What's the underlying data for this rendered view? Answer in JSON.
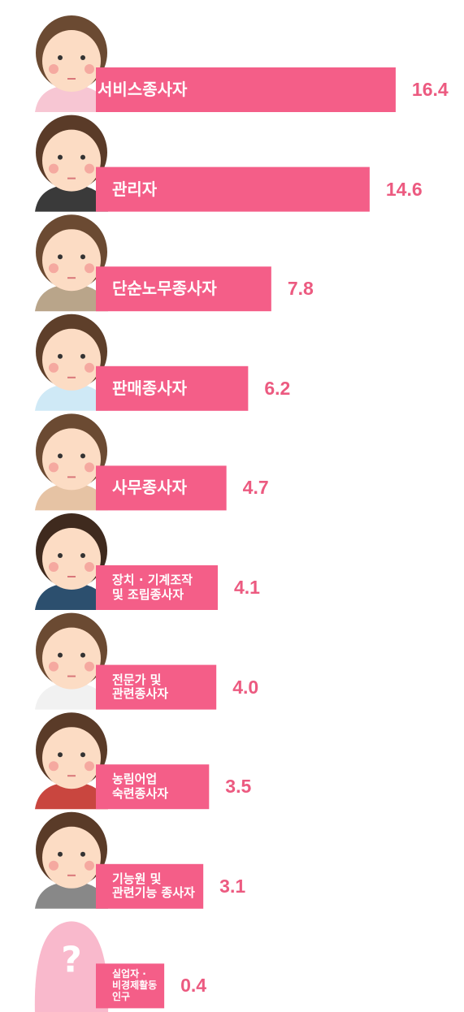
{
  "chart_data": {
    "type": "bar",
    "orientation": "horizontal",
    "color": "#f45e88",
    "categories": [
      "서비스종사자",
      "관리자",
      "단순노무종사자",
      "판매종사자",
      "사무종사자",
      "장치 · 기계조작\n및 조립종사자",
      "전문가 및\n관련종사자",
      "농림어업\n숙련종사자",
      "기능원 및\n관련기능 종사자",
      "실업자 ·\n비경제활동\n인구"
    ],
    "values": [
      16.4,
      14.6,
      7.8,
      6.2,
      4.7,
      4.1,
      4.0,
      3.5,
      3.1,
      0.4
    ],
    "value_labels": [
      "16.4",
      "14.6",
      "7.8",
      "6.2",
      "4.7",
      "4.1",
      "4.0",
      "3.5",
      "3.1",
      "0.4"
    ]
  }
}
